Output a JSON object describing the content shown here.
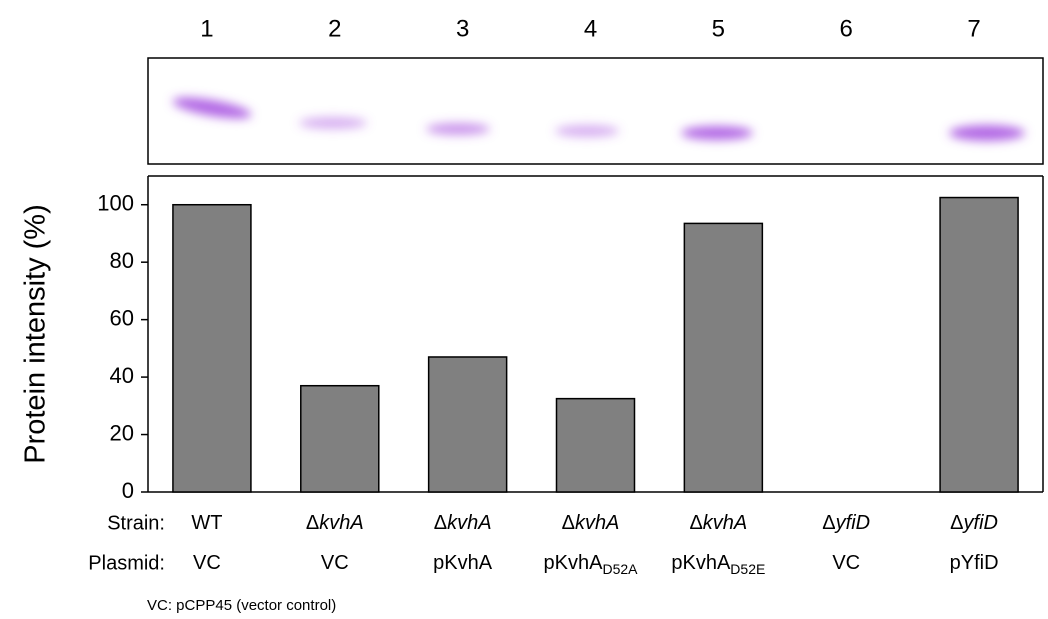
{
  "chart_data": {
    "type": "bar",
    "categories": [
      "1",
      "2",
      "3",
      "4",
      "5",
      "6",
      "7"
    ],
    "values": [
      100,
      37,
      47,
      32.5,
      93.5,
      0,
      102.5
    ],
    "color": "#808080",
    "y_label": "Protein intensity (%)",
    "ylim": [
      0,
      110
    ],
    "yticks": [
      0,
      20,
      40,
      60,
      80,
      100
    ],
    "row_labels": {
      "strain": "Strain:",
      "plasmid": "Plasmid:"
    },
    "strains": [
      {
        "text": "WT"
      },
      {
        "prefix": "Δ",
        "italic": "kvhA"
      },
      {
        "prefix": "Δ",
        "italic": "kvhA"
      },
      {
        "prefix": "Δ",
        "italic": "kvhA"
      },
      {
        "prefix": "Δ",
        "italic": "kvhA"
      },
      {
        "prefix": "Δ",
        "italic": "yfiD"
      },
      {
        "prefix": "Δ",
        "italic": "yfiD"
      }
    ],
    "plasmids": [
      {
        "text": "VC"
      },
      {
        "text": "VC"
      },
      {
        "text": "pKvhA"
      },
      {
        "text": "pKvhA",
        "sub": "D52A"
      },
      {
        "text": "pKvhA",
        "sub": "D52E"
      },
      {
        "text": "VC"
      },
      {
        "text": "pYfiD"
      }
    ],
    "footnote": "VC: pCPP45 (vector control)"
  }
}
